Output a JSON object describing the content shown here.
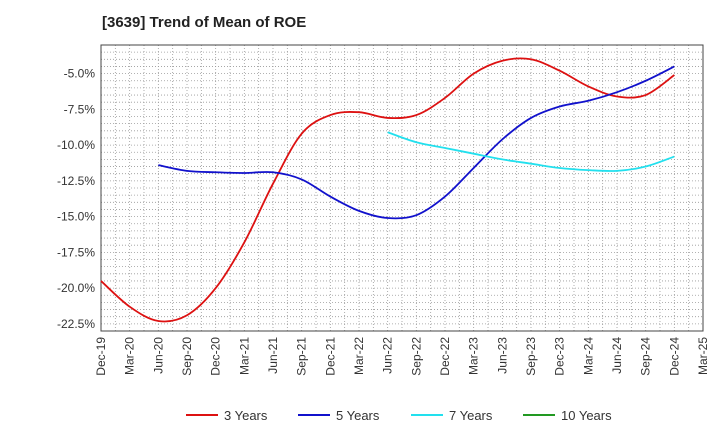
{
  "chart_data": {
    "type": "line",
    "title": "[3639]  Trend of Mean of ROE",
    "xlabel": "",
    "ylabel": "",
    "x_ticks": [
      "Dec-19",
      "Mar-20",
      "Jun-20",
      "Sep-20",
      "Dec-20",
      "Mar-21",
      "Jun-21",
      "Sep-21",
      "Dec-21",
      "Mar-22",
      "Jun-22",
      "Sep-22",
      "Dec-22",
      "Mar-23",
      "Jun-23",
      "Sep-23",
      "Dec-23",
      "Mar-24",
      "Jun-24",
      "Sep-24",
      "Dec-24",
      "Mar-25"
    ],
    "y_ticks": [
      -5.0,
      -7.5,
      -10.0,
      -12.5,
      -15.0,
      -17.5,
      -20.0,
      -22.5
    ],
    "y_tick_labels": [
      "-5.0%",
      "-7.5%",
      "-10.0%",
      "-12.5%",
      "-15.0%",
      "-17.5%",
      "-20.0%",
      "-22.5%"
    ],
    "ylim": [
      -23.0,
      -3.0
    ],
    "grid": true,
    "legend_position": "bottom",
    "series": [
      {
        "name": "3 Years",
        "color": "#dd1111",
        "values": [
          -19.5,
          -21.3,
          -22.3,
          -21.9,
          -20.0,
          -16.8,
          -12.7,
          -9.2,
          -7.9,
          -7.7,
          -8.1,
          -7.9,
          -6.7,
          -5.0,
          -4.1,
          -4.0,
          -4.8,
          -5.9,
          -6.6,
          -6.5,
          -5.1,
          null
        ]
      },
      {
        "name": "5 Years",
        "color": "#1111cc",
        "values": [
          null,
          null,
          -11.4,
          -11.8,
          -11.9,
          -11.95,
          -11.9,
          -12.4,
          -13.6,
          -14.6,
          -15.1,
          -14.9,
          -13.6,
          -11.6,
          -9.6,
          -8.1,
          -7.3,
          -6.9,
          -6.3,
          -5.5,
          -4.5,
          null
        ]
      },
      {
        "name": "7 Years",
        "color": "#22e0ee",
        "values": [
          null,
          null,
          null,
          null,
          null,
          null,
          null,
          null,
          null,
          null,
          -9.1,
          -9.8,
          -10.2,
          -10.6,
          -11.0,
          -11.3,
          -11.6,
          -11.75,
          -11.8,
          -11.5,
          -10.8,
          null
        ]
      },
      {
        "name": "10 Years",
        "color": "#229922",
        "values": []
      }
    ]
  }
}
